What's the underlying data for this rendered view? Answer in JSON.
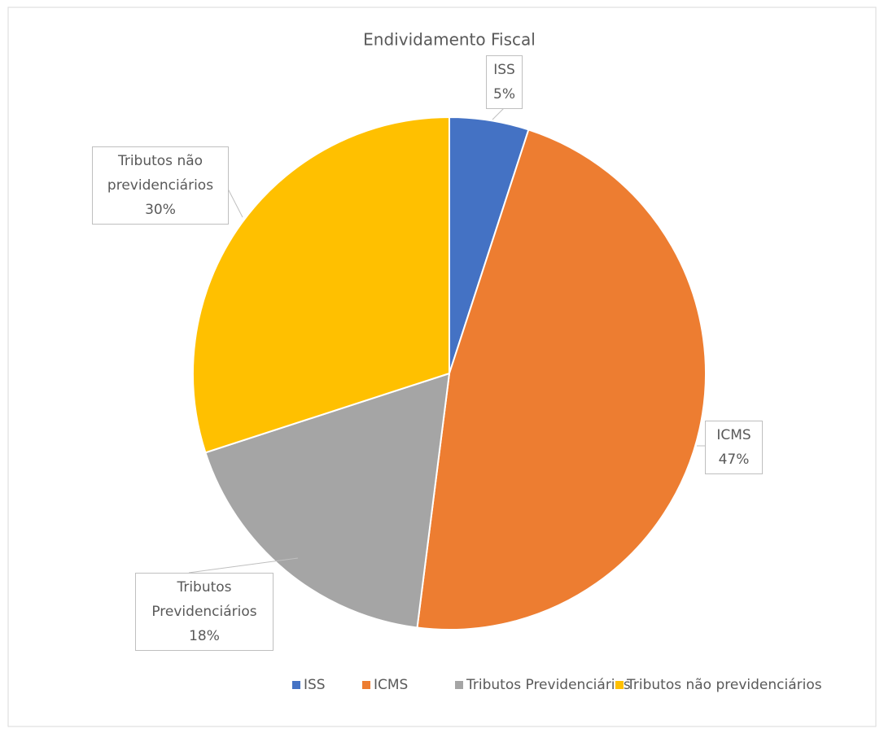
{
  "chart_data": {
    "type": "pie",
    "title": "Endividamento Fiscal",
    "categories": [
      "ISS",
      "ICMS",
      "Tributos Previdenciários",
      "Tributos não previdenciários"
    ],
    "values": [
      5,
      47,
      18,
      30
    ],
    "value_labels": [
      "5%",
      "47%",
      "18%",
      "30%"
    ],
    "colors": [
      "#4472c4",
      "#ed7d31",
      "#a5a5a5",
      "#ffc000"
    ],
    "legend": "bottom"
  }
}
